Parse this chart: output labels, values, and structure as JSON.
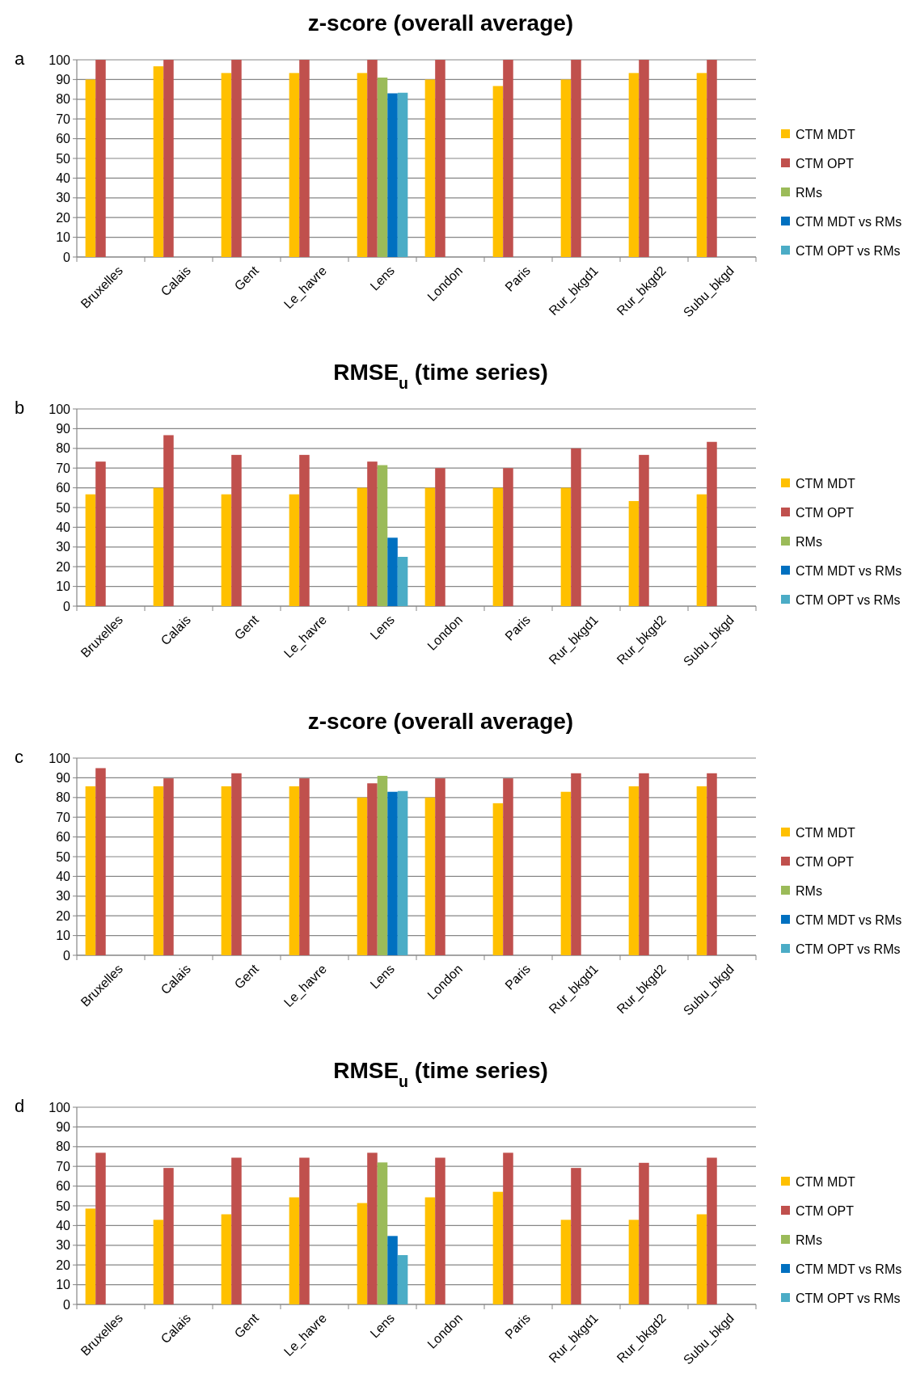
{
  "chart_data": [
    {
      "type": "bar",
      "title": "z-score  (overall average)",
      "annotations": [
        "a"
      ],
      "categories": [
        "Bruxelles",
        "Calais",
        "Gent",
        "Le_havre",
        "Lens",
        "London",
        "Paris",
        "Rur_bkgd1",
        "Rur_bkgd2",
        "Subu_bkgd"
      ],
      "ylim": [
        0,
        100
      ],
      "yticks": [
        0,
        10,
        20,
        30,
        40,
        50,
        60,
        70,
        80,
        90,
        100
      ],
      "grid": "y",
      "legend": "right",
      "series": [
        {
          "name": "CTM MDT",
          "color": "#ffc000",
          "values": [
            90,
            96.7,
            93.3,
            93.3,
            93.3,
            90,
            86.7,
            90,
            93.3,
            93.3
          ]
        },
        {
          "name": "CTM OPT",
          "color": "#c0504d",
          "values": [
            100,
            100,
            100,
            100,
            100,
            100,
            100,
            100,
            100,
            100
          ]
        },
        {
          "name": "RMs",
          "color": "#9bbb59",
          "values": [
            null,
            null,
            null,
            null,
            91,
            null,
            null,
            null,
            null,
            null
          ]
        },
        {
          "name": "CTM MDT vs RMs",
          "color": "#0070c0",
          "values": [
            null,
            null,
            null,
            null,
            83,
            null,
            null,
            null,
            null,
            null
          ]
        },
        {
          "name": "CTM OPT vs RMs",
          "color": "#4bacc6",
          "values": [
            null,
            null,
            null,
            null,
            83.3,
            null,
            null,
            null,
            null,
            null
          ]
        }
      ]
    },
    {
      "type": "bar",
      "title": "RMSE$_{u}$ (time series)",
      "annotations": [
        "b"
      ],
      "categories": [
        "Bruxelles",
        "Calais",
        "Gent",
        "Le_havre",
        "Lens",
        "London",
        "Paris",
        "Rur_bkgd1",
        "Rur_bkgd2",
        "Subu_bkgd"
      ],
      "ylim": [
        0,
        100
      ],
      "yticks": [
        0,
        10,
        20,
        30,
        40,
        50,
        60,
        70,
        80,
        90,
        100
      ],
      "grid": "y",
      "legend": "right",
      "series": [
        {
          "name": "CTM MDT",
          "color": "#ffc000",
          "values": [
            56.7,
            60,
            56.7,
            56.7,
            60,
            60,
            60,
            60,
            53.3,
            56.7
          ]
        },
        {
          "name": "CTM OPT",
          "color": "#c0504d",
          "values": [
            73.3,
            86.7,
            76.7,
            76.7,
            73.3,
            70,
            70,
            80,
            76.7,
            83.3
          ]
        },
        {
          "name": "RMs",
          "color": "#9bbb59",
          "values": [
            null,
            null,
            null,
            null,
            71.5,
            null,
            null,
            null,
            null,
            null
          ]
        },
        {
          "name": "CTM MDT vs RMs",
          "color": "#0070c0",
          "values": [
            null,
            null,
            null,
            null,
            34.7,
            null,
            null,
            null,
            null,
            null
          ]
        },
        {
          "name": "CTM OPT vs RMs",
          "color": "#4bacc6",
          "values": [
            null,
            null,
            null,
            null,
            25,
            null,
            null,
            null,
            null,
            null
          ]
        }
      ]
    },
    {
      "type": "bar",
      "title": "z-score  (overall average)",
      "annotations": [
        "c"
      ],
      "categories": [
        "Bruxelles",
        "Calais",
        "Gent",
        "Le_havre",
        "Lens",
        "London",
        "Paris",
        "Rur_bkgd1",
        "Rur_bkgd2",
        "Subu_bkgd"
      ],
      "ylim": [
        0,
        100
      ],
      "yticks": [
        0,
        10,
        20,
        30,
        40,
        50,
        60,
        70,
        80,
        90,
        100
      ],
      "grid": "y",
      "legend": "right",
      "series": [
        {
          "name": "CTM MDT",
          "color": "#ffc000",
          "values": [
            85.7,
            85.7,
            85.7,
            85.7,
            80,
            80,
            77.1,
            82.9,
            85.7,
            85.7
          ]
        },
        {
          "name": "CTM OPT",
          "color": "#c0504d",
          "values": [
            94.9,
            89.7,
            92.3,
            89.7,
            87.2,
            89.7,
            89.7,
            92.3,
            92.3,
            92.3
          ]
        },
        {
          "name": "RMs",
          "color": "#9bbb59",
          "values": [
            null,
            null,
            null,
            null,
            91,
            null,
            null,
            null,
            null,
            null
          ]
        },
        {
          "name": "CTM MDT vs RMs",
          "color": "#0070c0",
          "values": [
            null,
            null,
            null,
            null,
            82.9,
            null,
            null,
            null,
            null,
            null
          ]
        },
        {
          "name": "CTM OPT vs RMs",
          "color": "#4bacc6",
          "values": [
            null,
            null,
            null,
            null,
            83.3,
            null,
            null,
            null,
            null,
            null
          ]
        }
      ]
    },
    {
      "type": "bar",
      "title": "RMSE$_{u}$ (time series)",
      "annotations": [
        "d"
      ],
      "categories": [
        "Bruxelles",
        "Calais",
        "Gent",
        "Le_havre",
        "Lens",
        "London",
        "Paris",
        "Rur_bkgd1",
        "Rur_bkgd2",
        "Subu_bkgd"
      ],
      "ylim": [
        0,
        100
      ],
      "yticks": [
        0,
        10,
        20,
        30,
        40,
        50,
        60,
        70,
        80,
        90,
        100
      ],
      "grid": "y",
      "legend": "right",
      "series": [
        {
          "name": "CTM MDT",
          "color": "#ffc000",
          "values": [
            48.6,
            42.9,
            45.7,
            54.3,
            51.4,
            54.3,
            57.1,
            42.9,
            42.9,
            45.7
          ]
        },
        {
          "name": "CTM OPT",
          "color": "#c0504d",
          "values": [
            76.9,
            69.2,
            74.4,
            74.4,
            76.9,
            74.4,
            76.9,
            69.2,
            71.8,
            74.4
          ]
        },
        {
          "name": "RMs",
          "color": "#9bbb59",
          "values": [
            null,
            null,
            null,
            null,
            72,
            null,
            null,
            null,
            null,
            null
          ]
        },
        {
          "name": "CTM MDT vs RMs",
          "color": "#0070c0",
          "values": [
            null,
            null,
            null,
            null,
            34.7,
            null,
            null,
            null,
            null,
            null
          ]
        },
        {
          "name": "CTM OPT vs RMs",
          "color": "#4bacc6",
          "values": [
            null,
            null,
            null,
            null,
            25,
            null,
            null,
            null,
            null,
            null
          ]
        }
      ]
    }
  ]
}
